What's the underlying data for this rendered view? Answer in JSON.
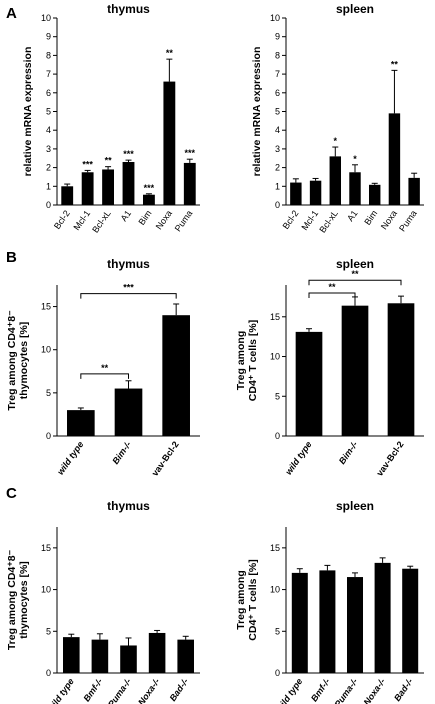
{
  "panels": [
    {
      "letter": "A"
    },
    {
      "letter": "B"
    },
    {
      "letter": "C"
    }
  ],
  "chart_data": [
    {
      "type": "bar",
      "title": "thymus",
      "ylabel": "relative mRNA expression",
      "ylim": [
        0,
        10
      ],
      "yticks": [
        0,
        1,
        2,
        3,
        4,
        5,
        6,
        7,
        8,
        9,
        10
      ],
      "categories": [
        "Bcl-2",
        "Mcl-1",
        "Bcl-xL",
        "A1",
        "Bim",
        "Noxa",
        "Puma"
      ],
      "values": [
        1.0,
        1.75,
        1.9,
        2.3,
        0.55,
        6.6,
        2.25
      ],
      "errors": [
        0.12,
        0.1,
        0.15,
        0.1,
        0.05,
        1.2,
        0.2
      ],
      "significance": [
        "",
        "***",
        "**",
        "***",
        "***",
        "**",
        "***"
      ],
      "category_style": "rotated",
      "panel": 0,
      "col": 0,
      "bar_color": "#000000"
    },
    {
      "type": "bar",
      "title": "spleen",
      "ylabel": "relative mRNA expression",
      "ylim": [
        0,
        10
      ],
      "yticks": [
        0,
        1,
        2,
        3,
        4,
        5,
        6,
        7,
        8,
        9,
        10
      ],
      "categories": [
        "Bcl-2",
        "Mcl-1",
        "Bcl-xL",
        "A1",
        "Bim",
        "Noxa",
        "Puma"
      ],
      "values": [
        1.2,
        1.3,
        2.6,
        1.75,
        1.08,
        4.9,
        1.45
      ],
      "errors": [
        0.2,
        0.12,
        0.5,
        0.4,
        0.08,
        2.3,
        0.25
      ],
      "significance": [
        "",
        "",
        "*",
        "*",
        "",
        "**",
        ""
      ],
      "category_style": "rotated",
      "panel": 0,
      "col": 1,
      "bar_color": "#000000"
    },
    {
      "type": "bar",
      "title": "thymus",
      "ylabel_lines": [
        "Treg among CD4⁺8⁻",
        "thymocytes [%]"
      ],
      "ylim": [
        0,
        17.5
      ],
      "yticks": [
        0,
        5,
        10,
        15
      ],
      "categories": [
        "wild type",
        "Bim-/-",
        "vav-Bcl-2"
      ],
      "values": [
        3.0,
        5.5,
        14.0
      ],
      "errors": [
        0.25,
        0.9,
        1.3
      ],
      "brackets": [
        {
          "from": 0,
          "to": 1,
          "y": 7.2,
          "label": "**"
        },
        {
          "from": 0,
          "to": 2,
          "y": 16.5,
          "label": "***"
        }
      ],
      "category_style": "rotated-mixed",
      "panel": 1,
      "col": 0,
      "bar_color": "#000000"
    },
    {
      "type": "bar",
      "title": "spleen",
      "ylabel_lines": [
        "Treg among",
        "CD4⁺ T cells [%]"
      ],
      "ylim": [
        0,
        19
      ],
      "yticks": [
        0,
        5,
        10,
        15
      ],
      "categories": [
        "wild type",
        "Bim-/-",
        "vav-Bcl-2"
      ],
      "values": [
        13.1,
        16.4,
        16.7
      ],
      "errors": [
        0.4,
        1.1,
        0.9
      ],
      "brackets": [
        {
          "from": 0,
          "to": 1,
          "y": 18.0,
          "label": "**"
        },
        {
          "from": 0,
          "to": 2,
          "y": 19.6,
          "label": "**"
        }
      ],
      "category_style": "rotated-mixed",
      "panel": 1,
      "col": 1,
      "bar_color": "#000000"
    },
    {
      "type": "bar",
      "title": "thymus",
      "ylabel_lines": [
        "Treg among CD4⁺8⁻",
        "thymocytes [%]"
      ],
      "ylim": [
        0,
        17.5
      ],
      "yticks": [
        0,
        5,
        10,
        15
      ],
      "categories": [
        "wild type",
        "Bmf-/-",
        "Puma-/-",
        "Noxa-/-",
        "Bad-/-"
      ],
      "values": [
        4.3,
        4.0,
        3.3,
        4.8,
        4.0
      ],
      "errors": [
        0.35,
        0.7,
        0.9,
        0.3,
        0.4
      ],
      "category_style": "rotated-italic",
      "panel": 2,
      "col": 0,
      "bar_color": "#000000"
    },
    {
      "type": "bar",
      "title": "spleen",
      "ylabel_lines": [
        "Treg among",
        "CD4⁺ T cells [%]"
      ],
      "ylim": [
        0,
        17.5
      ],
      "yticks": [
        0,
        5,
        10,
        15
      ],
      "categories": [
        "wild type",
        "Bmf-/-",
        "Puma-/-",
        "Noxa-/-",
        "Bad-/-"
      ],
      "values": [
        12.0,
        12.3,
        11.5,
        13.2,
        12.5
      ],
      "errors": [
        0.5,
        0.6,
        0.5,
        0.6,
        0.3
      ],
      "category_style": "rotated-italic",
      "panel": 2,
      "col": 1,
      "bar_color": "#000000"
    }
  ]
}
